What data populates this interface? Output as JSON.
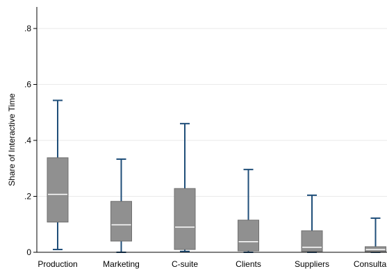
{
  "chart_data": {
    "type": "box",
    "title": "",
    "xlabel": "",
    "ylabel": "Share of Interactive Time",
    "ylim": [
      0,
      0.87
    ],
    "yticks": [
      {
        "value": 0,
        "label": "0"
      },
      {
        "value": 0.2,
        "label": ".2"
      },
      {
        "value": 0.4,
        "label": ".4"
      },
      {
        "value": 0.6,
        "label": ".6"
      },
      {
        "value": 0.8,
        "label": ".8"
      }
    ],
    "grid": true,
    "colors": {
      "box_fill": "#909090",
      "box_stroke": "#6f6f6f",
      "median": "#ffffff",
      "whisker": "#1f4e79",
      "axis": "#000000",
      "grid": "#eaeaea"
    },
    "categories": [
      "Production",
      "Marketing",
      "C-suite",
      "Clients",
      "Suppliers",
      "Consultants"
    ],
    "boxes": [
      {
        "category": "Production",
        "whisker_low": 0.01,
        "q1": 0.108,
        "median": 0.207,
        "q3": 0.338,
        "whisker_high": 0.543
      },
      {
        "category": "Marketing",
        "whisker_low": 0.0,
        "q1": 0.04,
        "median": 0.098,
        "q3": 0.182,
        "whisker_high": 0.333
      },
      {
        "category": "C-suite",
        "whisker_low": 0.003,
        "q1": 0.01,
        "median": 0.09,
        "q3": 0.228,
        "whisker_high": 0.46
      },
      {
        "category": "Clients",
        "whisker_low": 0.0,
        "q1": 0.005,
        "median": 0.038,
        "q3": 0.115,
        "whisker_high": 0.296
      },
      {
        "category": "Suppliers",
        "whisker_low": 0.0,
        "q1": 0.003,
        "median": 0.018,
        "q3": 0.077,
        "whisker_high": 0.204
      },
      {
        "category": "Consultants",
        "whisker_low": 0.0,
        "q1": 0.002,
        "median": 0.01,
        "q3": 0.02,
        "whisker_high": 0.122
      }
    ]
  }
}
